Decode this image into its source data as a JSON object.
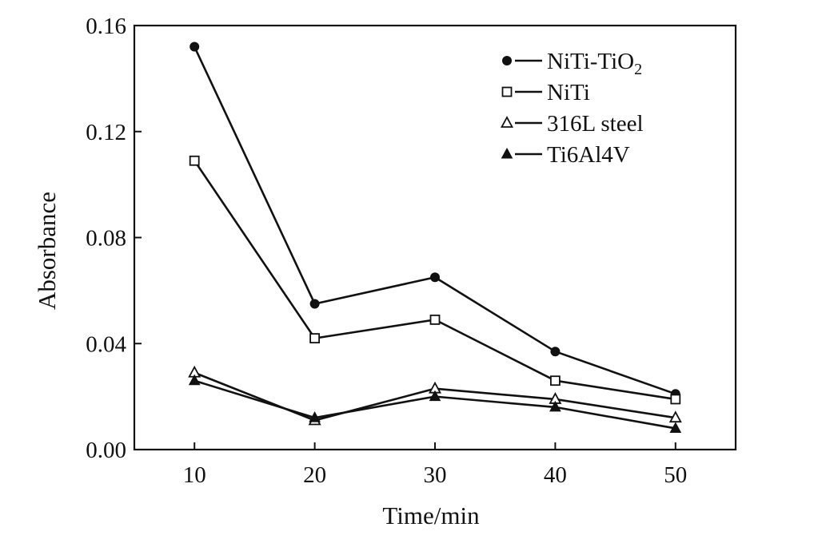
{
  "chart_data": {
    "type": "line",
    "title": "",
    "xlabel": "Time/min",
    "ylabel": "Absorbance",
    "x": [
      10,
      20,
      30,
      40,
      50
    ],
    "x_ticks": [
      "10",
      "20",
      "30",
      "40",
      "50"
    ],
    "y_ticks": [
      "0.00",
      "0.04",
      "0.08",
      "0.12",
      "0.16"
    ],
    "xlim": [
      5,
      55
    ],
    "ylim": [
      0,
      0.16
    ],
    "grid": false,
    "legend_position": "top-right",
    "series": [
      {
        "name": "NiTi-TiO",
        "name_sub": "2",
        "marker": "filled-circle",
        "values": [
          0.152,
          0.055,
          0.065,
          0.037,
          0.021
        ]
      },
      {
        "name": "NiTi",
        "name_sub": "",
        "marker": "open-square",
        "values": [
          0.109,
          0.042,
          0.049,
          0.026,
          0.019
        ]
      },
      {
        "name": "316L steel",
        "name_sub": "",
        "marker": "open-triangle",
        "values": [
          0.029,
          0.011,
          0.023,
          0.019,
          0.012
        ]
      },
      {
        "name": "Ti6Al4V",
        "name_sub": "",
        "marker": "filled-triangle",
        "values": [
          0.026,
          0.012,
          0.02,
          0.016,
          0.008
        ]
      }
    ],
    "colors": {
      "ink": "#111111",
      "background": "#ffffff"
    }
  }
}
